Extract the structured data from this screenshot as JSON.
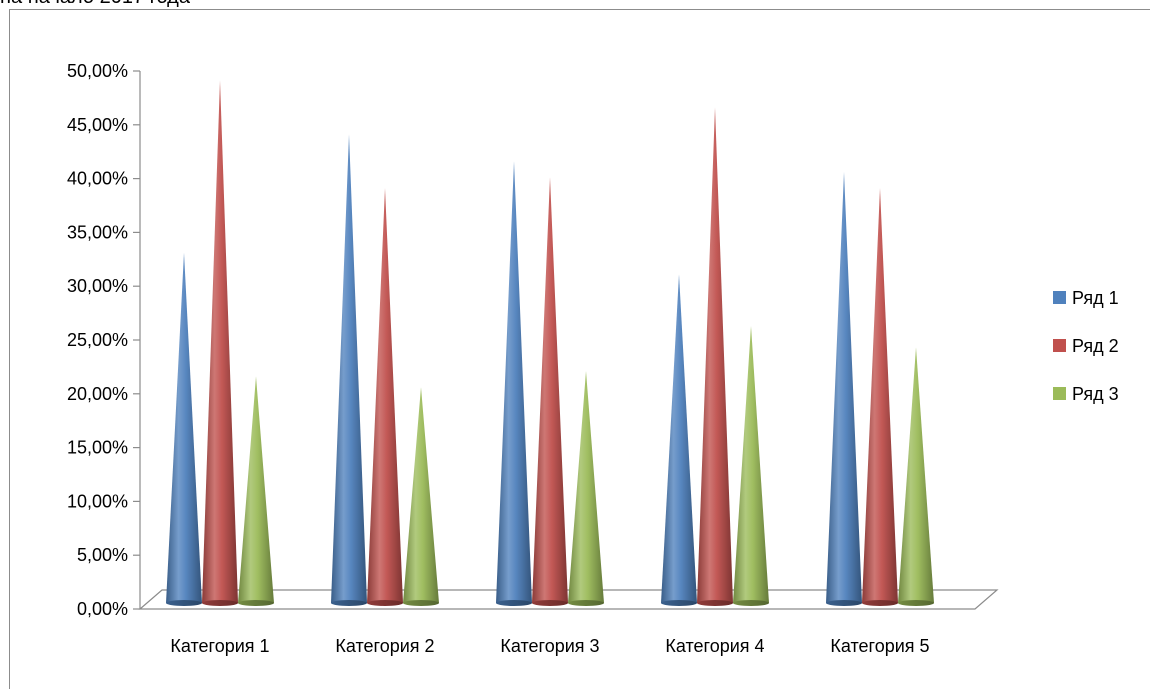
{
  "header": {
    "cut_title": "на начало 2017 года"
  },
  "chart_data": {
    "type": "bar",
    "shape": "cone",
    "categories": [
      "Категория 1",
      "Категория 2",
      "Категория 3",
      "Категория 4",
      "Категория 5"
    ],
    "series": [
      {
        "name": "Ряд 1",
        "color": "#4f81bd",
        "values": [
          0.32,
          0.43,
          0.405,
          0.3,
          0.395
        ]
      },
      {
        "name": "Ряд 2",
        "color": "#c0504d",
        "values": [
          0.48,
          0.38,
          0.39,
          0.455,
          0.38
        ]
      },
      {
        "name": "Ряд 3",
        "color": "#9bbb59",
        "values": [
          0.205,
          0.195,
          0.21,
          0.252,
          0.232
        ]
      }
    ],
    "ylim": [
      0,
      0.5
    ],
    "y_ticks": [
      "0,00%",
      "5,00%",
      "10,00%",
      "15,00%",
      "20,00%",
      "25,00%",
      "30,00%",
      "35,00%",
      "40,00%",
      "45,00%",
      "50,00%"
    ],
    "grid": false,
    "legend_position": "right",
    "title": "",
    "xlabel": "",
    "ylabel": ""
  }
}
